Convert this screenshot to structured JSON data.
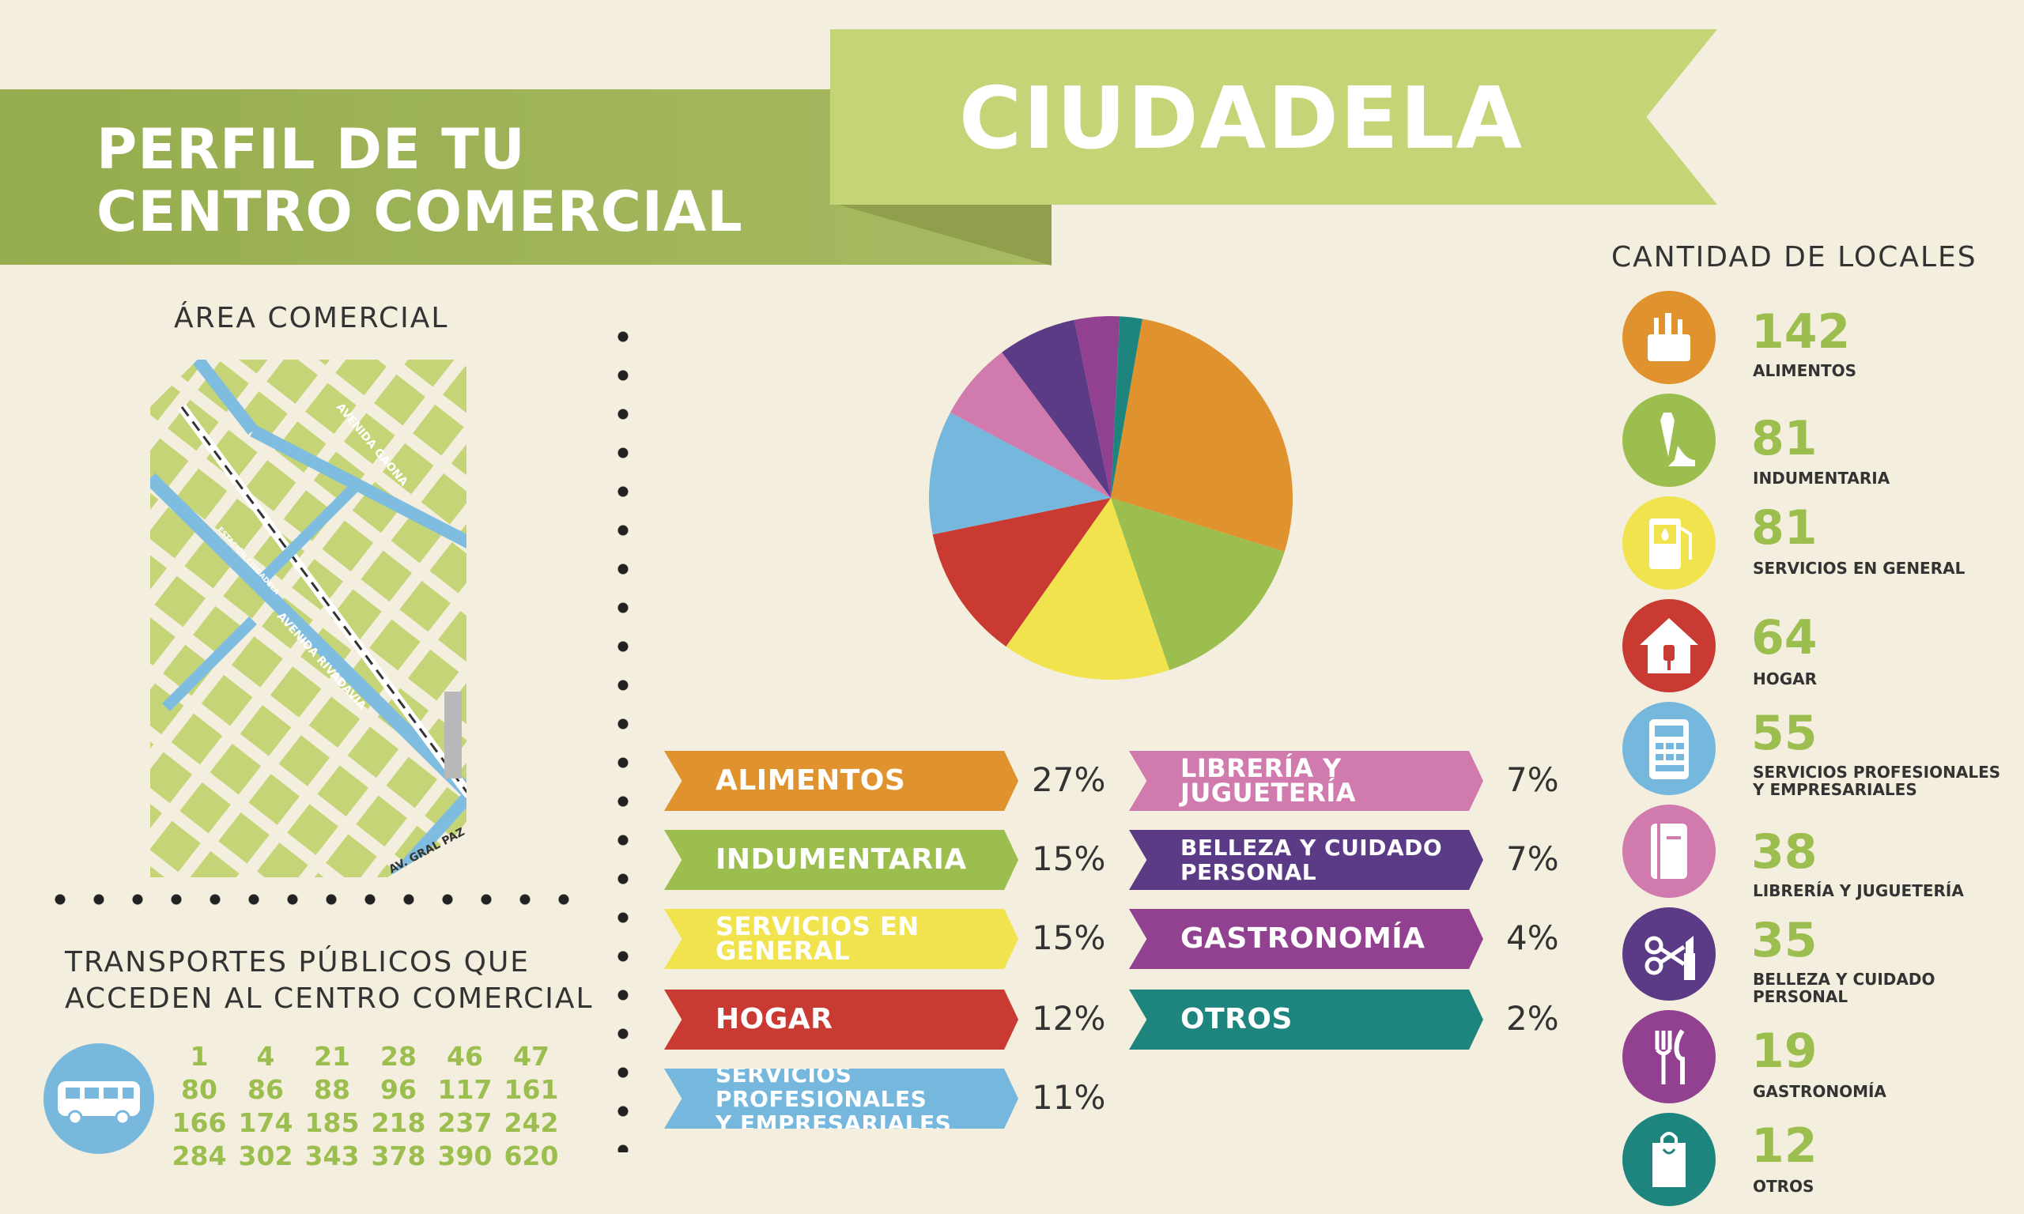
{
  "header": {
    "title_line1": "PERFIL DE TU",
    "title_line2": "CENTRO COMERCIAL",
    "name": "CIUDADELA"
  },
  "area": {
    "heading": "ÁREA COMERCIAL",
    "streets": [
      "AVENIDA GAONA",
      "ESTACIÓN CIUDADELA",
      "AVENIDA RIVADAVIA",
      "AV. GRAL PAZ"
    ]
  },
  "transport": {
    "heading_line1": "TRANSPORTES PÚBLICOS QUE",
    "heading_line2": "ACCEDEN AL CENTRO COMERCIAL",
    "routes": [
      "1",
      "4",
      "21",
      "28",
      "46",
      "47",
      "80",
      "86",
      "88",
      "96",
      "117",
      "161",
      "166",
      "174",
      "185",
      "218",
      "237",
      "242",
      "284",
      "302",
      "343",
      "378",
      "390",
      "620"
    ]
  },
  "chart_data": {
    "type": "pie",
    "categories": [
      "ALIMENTOS",
      "INDUMENTARIA",
      "SERVICIOS EN GENERAL",
      "HOGAR",
      "SERVICIOS PROFESIONALES Y EMPRESARIALES",
      "LIBRERÍA Y JUGUETERÍA",
      "BELLEZA Y CUIDADO PERSONAL",
      "GASTRONOMÍA",
      "OTROS"
    ],
    "values": [
      27,
      15,
      15,
      12,
      11,
      7,
      7,
      4,
      2
    ],
    "colors": [
      "#e0922e",
      "#9bbe4f",
      "#f0e34e",
      "#c93a32",
      "#76b7dd",
      "#d17aae",
      "#5b3a86",
      "#91418f",
      "#1e857e"
    ]
  },
  "legend": [
    {
      "label1": "ALIMENTOS",
      "label2": "",
      "pct": "27%"
    },
    {
      "label1": "INDUMENTARIA",
      "label2": "",
      "pct": "15%"
    },
    {
      "label1": "SERVICIOS EN",
      "label2": "GENERAL",
      "pct": "15%"
    },
    {
      "label1": "HOGAR",
      "label2": "",
      "pct": "12%"
    },
    {
      "label1": "SERVICIOS PROFESIONALES",
      "label2": "Y EMPRESARIALES",
      "pct": "11%"
    },
    {
      "label1": "LIBRERÍA Y",
      "label2": "JUGUETERÍA",
      "pct": "7%"
    },
    {
      "label1": "BELLEZA Y CUIDADO",
      "label2": "PERSONAL",
      "pct": "7%"
    },
    {
      "label1": "GASTRONOMÍA",
      "label2": "",
      "pct": "4%"
    },
    {
      "label1": "OTROS",
      "label2": "",
      "pct": "2%"
    }
  ],
  "locales": {
    "heading": "CANTIDAD DE LOCALES",
    "items": [
      {
        "count": "142",
        "label1": "ALIMENTOS",
        "label2": "",
        "color": "#e0922e",
        "icon": "food-basket-icon"
      },
      {
        "count": "81",
        "label1": "INDUMENTARIA",
        "label2": "",
        "color": "#9bbe4f",
        "icon": "tie-shoe-icon"
      },
      {
        "count": "81",
        "label1": "SERVICIOS EN GENERAL",
        "label2": "",
        "color": "#f0e34e",
        "icon": "fuel-pump-icon"
      },
      {
        "count": "64",
        "label1": "HOGAR",
        "label2": "",
        "color": "#c93a32",
        "icon": "house-plug-icon"
      },
      {
        "count": "55",
        "label1": "SERVICIOS PROFESIONALES",
        "label2": "Y EMPRESARIALES",
        "color": "#76b7dd",
        "icon": "calculator-icon"
      },
      {
        "count": "38",
        "label1": "LIBRERÍA Y JUGUETERÍA",
        "label2": "",
        "color": "#d17aae",
        "icon": "notebook-icon"
      },
      {
        "count": "35",
        "label1": "BELLEZA Y CUIDADO",
        "label2": "PERSONAL",
        "color": "#5b3a86",
        "icon": "scissors-lipstick-icon"
      },
      {
        "count": "19",
        "label1": "GASTRONOMÍA",
        "label2": "",
        "color": "#91418f",
        "icon": "fork-knife-icon"
      },
      {
        "count": "12",
        "label1": "OTROS",
        "label2": "",
        "color": "#1e857e",
        "icon": "shopping-bag-icon"
      }
    ]
  }
}
